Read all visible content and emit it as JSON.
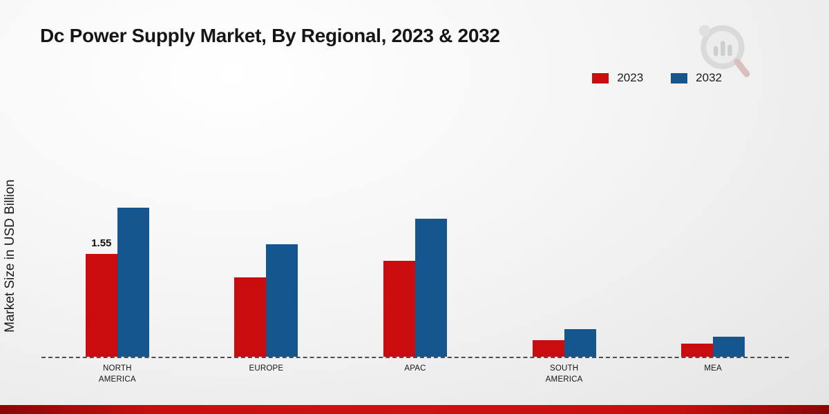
{
  "title": "Dc Power Supply Market, By Regional, 2023 & 2032",
  "ylabel": "Market Size in USD Billion",
  "legend": [
    {
      "label": "2023",
      "color": "#c90d0e"
    },
    {
      "label": "2032",
      "color": "#16568f"
    }
  ],
  "chart_data": {
    "type": "bar",
    "title": "Dc Power Supply Market, By Regional, 2023 & 2032",
    "ylabel": "Market Size in USD Billion",
    "categories": [
      "NORTH AMERICA",
      "EUROPE",
      "APAC",
      "SOUTH AMERICA",
      "MEA"
    ],
    "series": [
      {
        "name": "2023",
        "color": "#c90d0e",
        "values": [
          1.55,
          1.2,
          1.45,
          0.25,
          0.2
        ]
      },
      {
        "name": "2032",
        "color": "#16568f",
        "values": [
          2.25,
          1.7,
          2.08,
          0.42,
          0.3
        ]
      }
    ],
    "ylim": [
      0,
      2.5
    ],
    "baseline_style": "dashed",
    "legend_position": "top-right",
    "annotations": [
      {
        "series_index": 0,
        "category_index": 0,
        "text": "1.55"
      }
    ]
  }
}
